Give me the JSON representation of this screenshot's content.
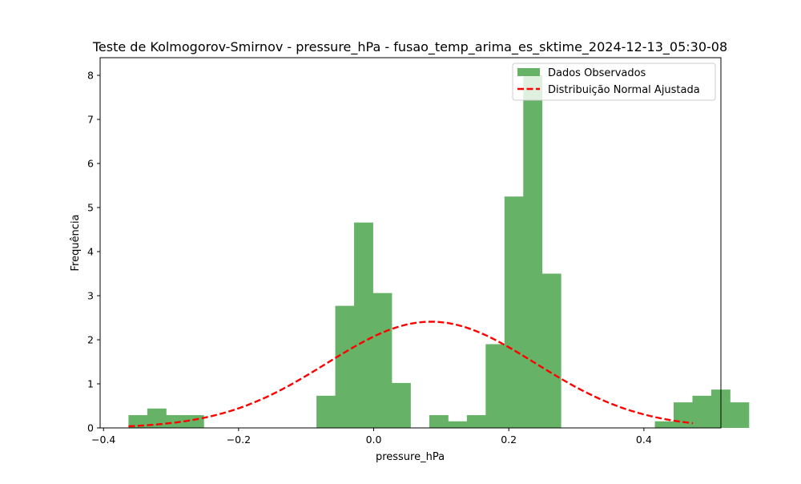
{
  "chart_data": {
    "type": "bar",
    "title": "Teste de Kolmogorov-Smirnov - pressure_hPa - fusao_temp_arima_es_sktime_2024-12-13_05:30-08",
    "xlabel": "pressure_hPa",
    "ylabel": "Frequência",
    "xlim": [
      -0.405,
      0.514
    ],
    "ylim": [
      0,
      8.4
    ],
    "x_ticks": [
      {
        "value": -0.4,
        "label": "−0.4"
      },
      {
        "value": -0.2,
        "label": "−0.2"
      },
      {
        "value": 0.0,
        "label": "0.0"
      },
      {
        "value": 0.2,
        "label": "0.2"
      },
      {
        "value": 0.4,
        "label": "0.4"
      }
    ],
    "y_ticks": [
      {
        "value": 0,
        "label": "0"
      },
      {
        "value": 1,
        "label": "1"
      },
      {
        "value": 2,
        "label": "2"
      },
      {
        "value": 3,
        "label": "3"
      },
      {
        "value": 4,
        "label": "4"
      },
      {
        "value": 5,
        "label": "5"
      },
      {
        "value": 6,
        "label": "6"
      },
      {
        "value": 7,
        "label": "7"
      },
      {
        "value": 8,
        "label": "8"
      }
    ],
    "histogram": {
      "name": "Dados Observados",
      "color": "#66b266",
      "bin_start": -0.363,
      "bin_width": 0.02783,
      "counts": [
        0.29,
        0.44,
        0.29,
        0.29,
        0,
        0,
        0,
        0,
        0,
        0,
        0.73,
        2.77,
        4.66,
        3.06,
        1.02,
        0,
        0.29,
        0.15,
        0.29,
        1.9,
        5.25,
        8.0,
        3.5,
        0,
        0,
        0,
        0,
        0,
        0.15,
        0.58,
        0.73,
        0.87,
        0.58
      ]
    },
    "curve": {
      "name": "Distribuição Normal Ajustada",
      "color": "#ff0000",
      "style": "dashed",
      "mean": 0.085,
      "peak": 2.41,
      "sigma": 0.155,
      "x_range": [
        -0.363,
        0.4725
      ]
    },
    "legend": {
      "position": "upper right",
      "entries": [
        {
          "label": "Dados Observados",
          "kind": "patch",
          "color": "#66b266"
        },
        {
          "label": "Distribuição Normal Ajustada",
          "kind": "dashed-line",
          "color": "#ff0000"
        }
      ]
    }
  }
}
